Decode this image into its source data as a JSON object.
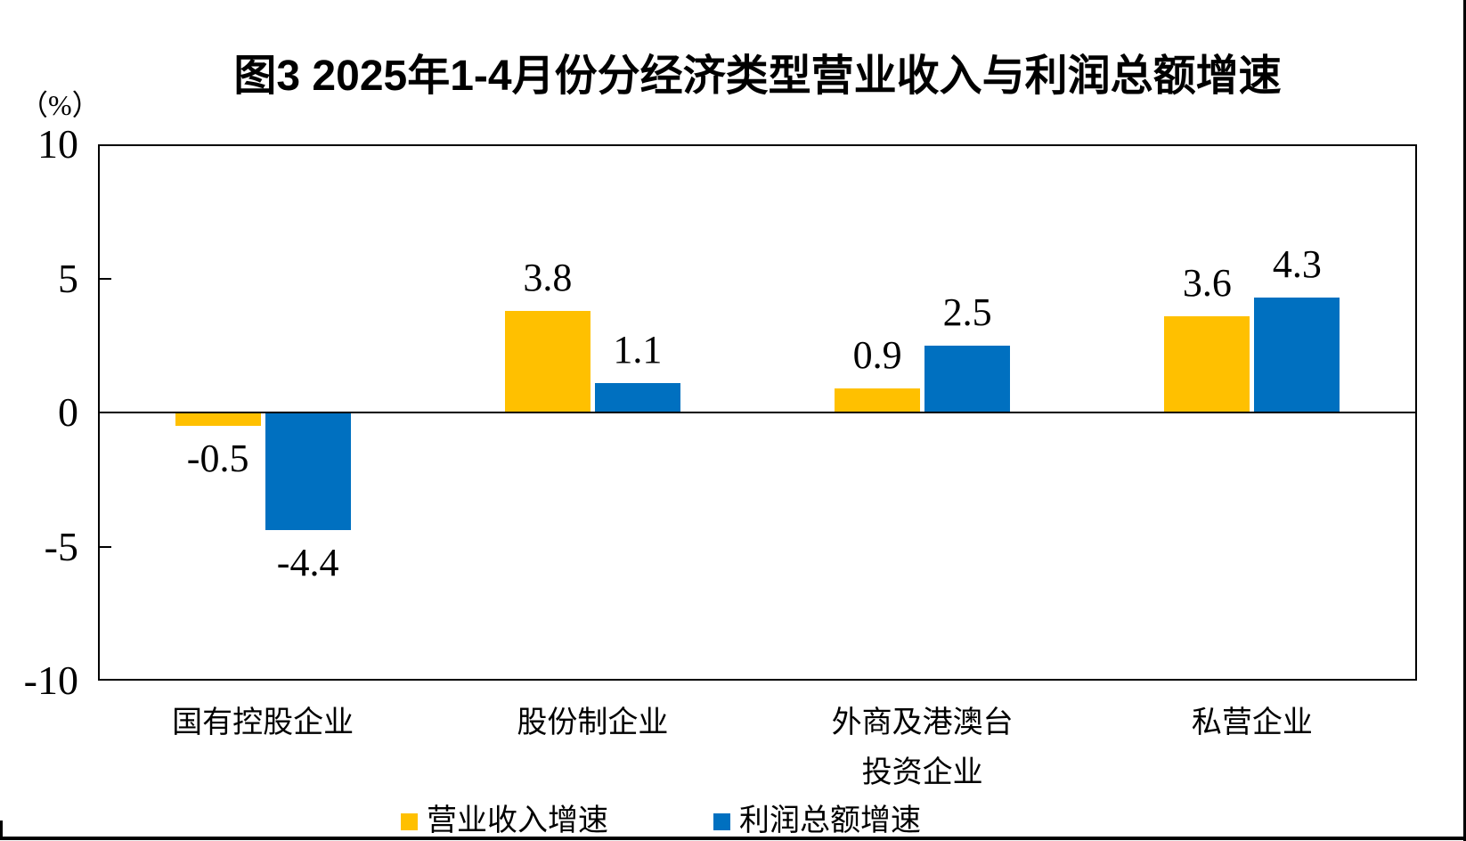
{
  "title": "图3  2025年1-4月份分经济类型营业收入与利润总额增速",
  "axis_unit_label": "（%）",
  "chart_data": {
    "type": "bar",
    "title": "图3  2025年1-4月份分经济类型营业收入与利润总额增速",
    "ylabel": "（%）",
    "xlabel": "",
    "ylim": [
      -10,
      10
    ],
    "yticks": [
      10,
      5,
      0,
      -5,
      -10
    ],
    "grid": false,
    "legend_position": "bottom",
    "categories": [
      "国有控股企业",
      "股份制企业",
      "外商及港澳台\n投资企业",
      "私营企业"
    ],
    "series": [
      {
        "name": "营业收入增速",
        "color": "#FFC000",
        "values": [
          -0.5,
          3.8,
          0.9,
          3.6
        ],
        "labels": [
          "-0.5",
          "3.8",
          "0.9",
          "3.6"
        ]
      },
      {
        "name": "利润总额增速",
        "color": "#0070C0",
        "values": [
          -4.4,
          1.1,
          2.5,
          4.3
        ],
        "labels": [
          "-4.4",
          "1.1",
          "2.5",
          "4.3"
        ]
      }
    ]
  }
}
